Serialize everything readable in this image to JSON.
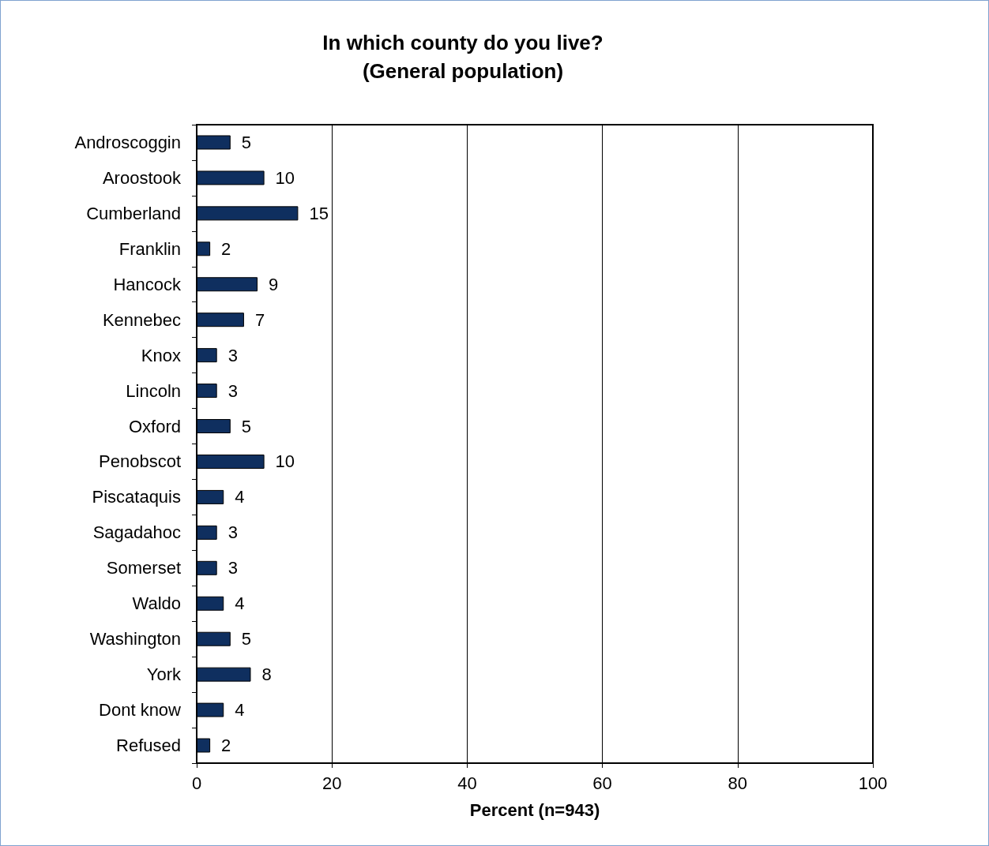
{
  "chart_data": {
    "type": "bar",
    "orientation": "horizontal",
    "title": "In which county do you live?\n(General population)",
    "xlabel": "Percent (n=943)",
    "categories": [
      "Androscoggin",
      "Aroostook",
      "Cumberland",
      "Franklin",
      "Hancock",
      "Kennebec",
      "Knox",
      "Lincoln",
      "Oxford",
      "Penobscot",
      "Piscataquis",
      "Sagadahoc",
      "Somerset",
      "Waldo",
      "Washington",
      "York",
      "Dont know",
      "Refused"
    ],
    "values": [
      5,
      10,
      15,
      2,
      9,
      7,
      3,
      3,
      5,
      10,
      4,
      3,
      3,
      4,
      5,
      8,
      4,
      2
    ],
    "color": "#0f2f5f",
    "xlim": [
      0,
      100
    ],
    "xticks": [
      0,
      20,
      40,
      60,
      80,
      100
    ],
    "grid": "x",
    "data_labels": true
  }
}
